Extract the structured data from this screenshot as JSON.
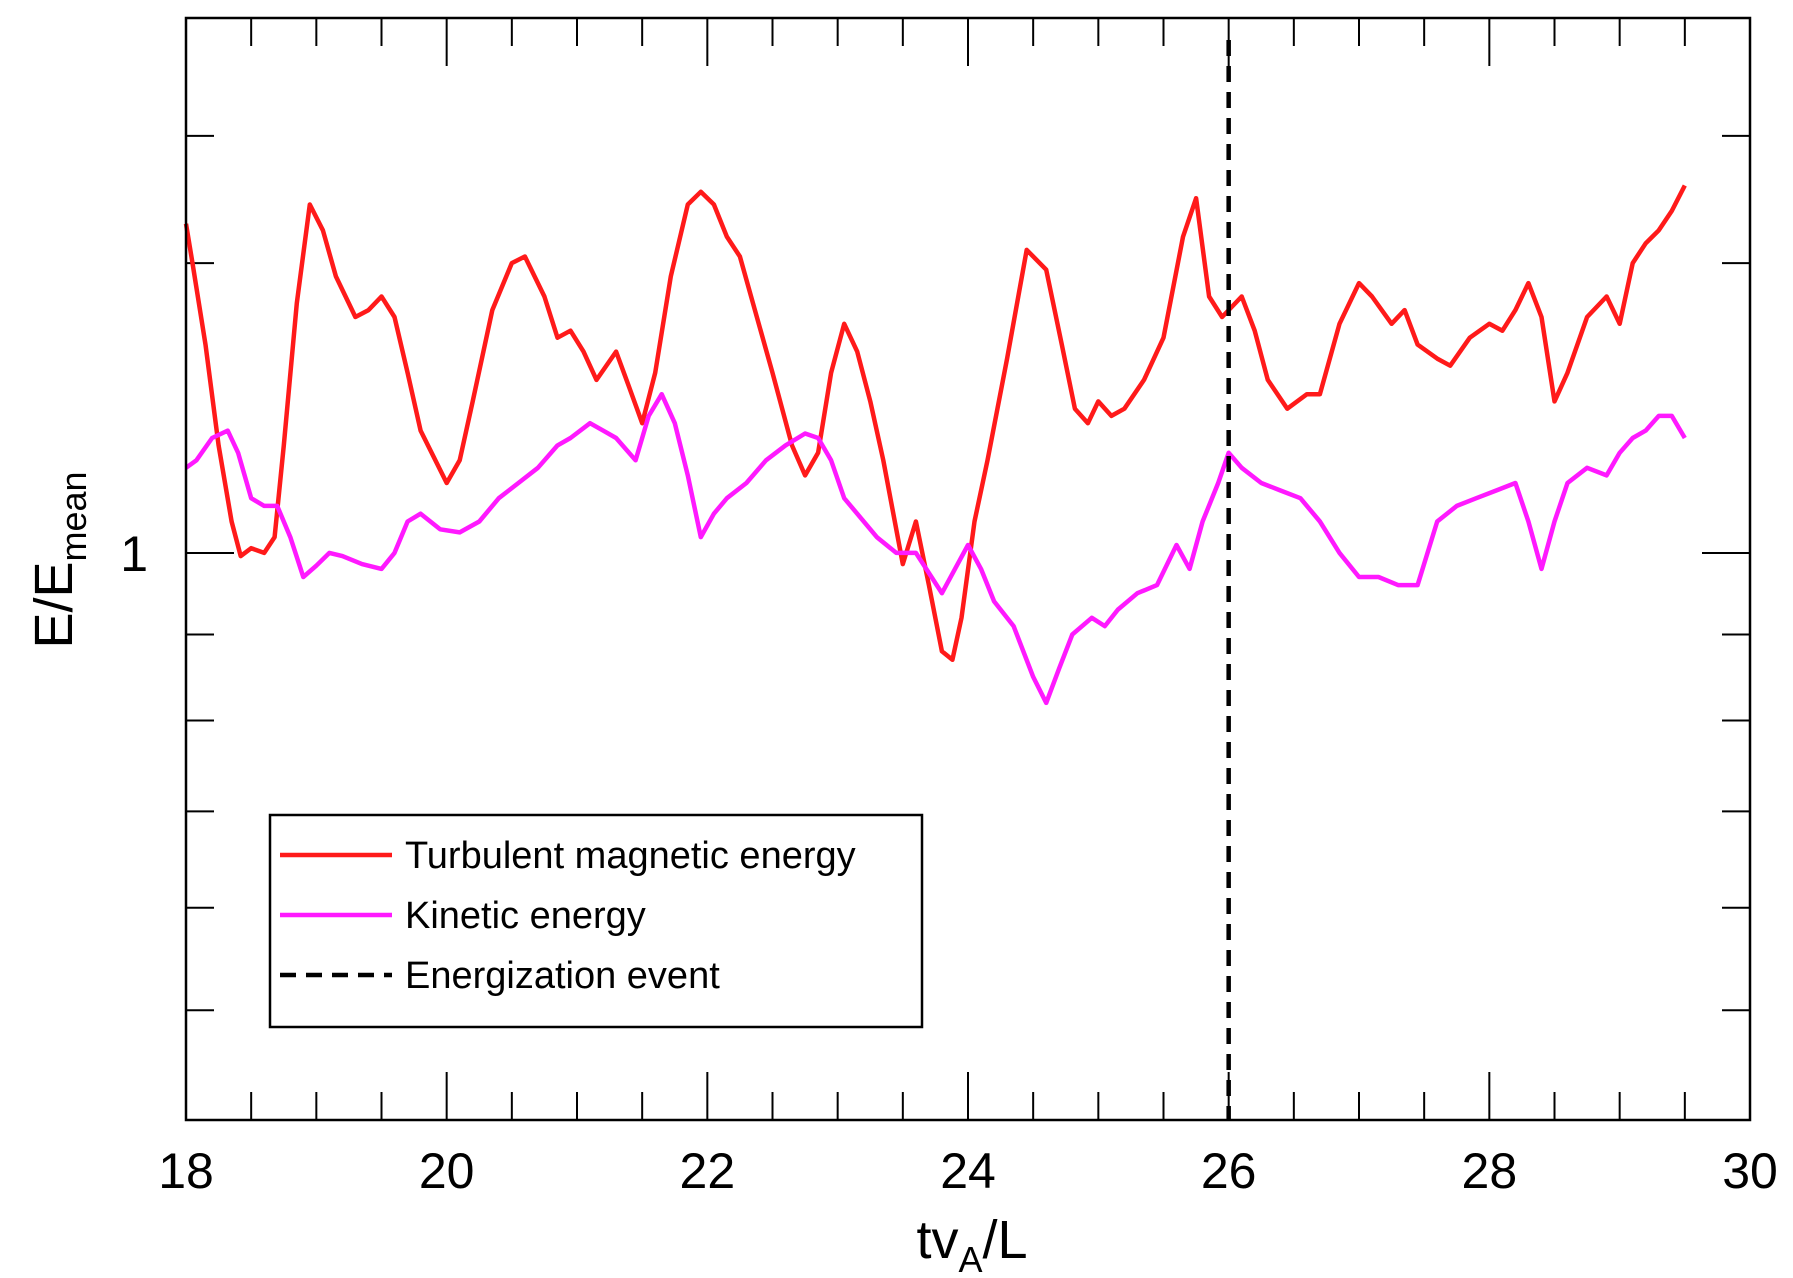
{
  "chart_data": {
    "type": "line",
    "title": "",
    "xlabel": {
      "main": "tv",
      "sub": "A",
      "tail": "/L"
    },
    "ylabel": {
      "main": "E/E",
      "sub": "mean"
    },
    "xlim": [
      18,
      30
    ],
    "ylog": true,
    "ylim": [
      0.7,
      1.4
    ],
    "x_ticks": [
      18,
      20,
      22,
      24,
      26,
      28,
      30
    ],
    "x_tick_labels": [
      "18",
      "20",
      "22",
      "24",
      "26",
      "28",
      "30"
    ],
    "y_ticks": [
      1
    ],
    "y_tick_labels": [
      "1"
    ],
    "legend_position": "bottom-left",
    "series": [
      {
        "name": "Turbulent magnetic energy",
        "color": "#ff1a1a",
        "style": "solid",
        "x": [
          18.0,
          18.05,
          18.15,
          18.25,
          18.35,
          18.42,
          18.5,
          18.6,
          18.68,
          18.75,
          18.85,
          18.95,
          19.05,
          19.15,
          19.3,
          19.4,
          19.5,
          19.6,
          19.7,
          19.8,
          20.0,
          20.1,
          20.2,
          20.35,
          20.5,
          20.6,
          20.75,
          20.85,
          20.95,
          21.05,
          21.15,
          21.3,
          21.4,
          21.5,
          21.6,
          21.72,
          21.85,
          21.95,
          22.05,
          22.15,
          22.25,
          22.35,
          22.5,
          22.65,
          22.75,
          22.85,
          22.95,
          23.05,
          23.15,
          23.25,
          23.35,
          23.5,
          23.6,
          23.7,
          23.8,
          23.88,
          23.95,
          24.05,
          24.15,
          24.3,
          24.45,
          24.6,
          24.72,
          24.82,
          24.92,
          25.0,
          25.1,
          25.2,
          25.35,
          25.5,
          25.65,
          25.75,
          25.85,
          25.95,
          26.1,
          26.2,
          26.3,
          26.45,
          26.6,
          26.7,
          26.85,
          27.0,
          27.1,
          27.25,
          27.35,
          27.45,
          27.6,
          27.7,
          27.85,
          28.0,
          28.1,
          28.2,
          28.3,
          28.4,
          28.5,
          28.6,
          28.75,
          28.9,
          29.0,
          29.1,
          29.2,
          29.3,
          29.4,
          29.5
        ],
        "values": [
          1.23,
          1.2,
          1.14,
          1.07,
          1.02,
          0.998,
          1.003,
          1.0,
          1.01,
          1.07,
          1.17,
          1.245,
          1.225,
          1.19,
          1.16,
          1.165,
          1.175,
          1.16,
          1.12,
          1.08,
          1.045,
          1.06,
          1.1,
          1.165,
          1.2,
          1.205,
          1.175,
          1.145,
          1.15,
          1.135,
          1.115,
          1.135,
          1.11,
          1.085,
          1.12,
          1.19,
          1.245,
          1.255,
          1.245,
          1.22,
          1.205,
          1.17,
          1.12,
          1.07,
          1.05,
          1.065,
          1.12,
          1.155,
          1.135,
          1.1,
          1.06,
          0.993,
          1.02,
          0.98,
          0.94,
          0.935,
          0.96,
          1.02,
          1.06,
          1.13,
          1.21,
          1.195,
          1.14,
          1.095,
          1.085,
          1.1,
          1.09,
          1.095,
          1.115,
          1.145,
          1.22,
          1.25,
          1.175,
          1.16,
          1.175,
          1.15,
          1.115,
          1.095,
          1.105,
          1.105,
          1.155,
          1.185,
          1.175,
          1.155,
          1.165,
          1.14,
          1.13,
          1.125,
          1.145,
          1.155,
          1.15,
          1.165,
          1.185,
          1.16,
          1.1,
          1.12,
          1.16,
          1.175,
          1.155,
          1.2,
          1.215,
          1.225,
          1.24,
          1.26
        ]
      },
      {
        "name": "Kinetic energy",
        "color": "#ff19ff",
        "style": "solid",
        "x": [
          18.0,
          18.08,
          18.2,
          18.32,
          18.4,
          18.5,
          18.6,
          18.7,
          18.8,
          18.9,
          19.0,
          19.1,
          19.2,
          19.35,
          19.5,
          19.6,
          19.7,
          19.8,
          19.95,
          20.1,
          20.25,
          20.4,
          20.55,
          20.7,
          20.85,
          20.95,
          21.1,
          21.2,
          21.3,
          21.45,
          21.55,
          21.65,
          21.75,
          21.85,
          21.95,
          22.05,
          22.15,
          22.3,
          22.45,
          22.6,
          22.75,
          22.85,
          22.95,
          23.05,
          23.15,
          23.3,
          23.45,
          23.6,
          23.72,
          23.8,
          23.9,
          24.0,
          24.1,
          24.2,
          24.35,
          24.5,
          24.6,
          24.7,
          24.8,
          24.95,
          25.05,
          25.15,
          25.3,
          25.45,
          25.6,
          25.7,
          25.8,
          25.92,
          26.0,
          26.1,
          26.25,
          26.4,
          26.55,
          26.7,
          26.85,
          27.0,
          27.15,
          27.3,
          27.45,
          27.6,
          27.75,
          27.9,
          28.05,
          28.2,
          28.3,
          28.4,
          28.5,
          28.6,
          28.75,
          28.9,
          29.0,
          29.1,
          29.2,
          29.3,
          29.4,
          29.5
        ],
        "values": [
          1.055,
          1.06,
          1.075,
          1.08,
          1.065,
          1.035,
          1.03,
          1.03,
          1.01,
          0.985,
          0.992,
          1.0,
          0.998,
          0.993,
          0.99,
          1.0,
          1.02,
          1.025,
          1.015,
          1.013,
          1.02,
          1.035,
          1.045,
          1.055,
          1.07,
          1.075,
          1.085,
          1.08,
          1.075,
          1.06,
          1.09,
          1.105,
          1.085,
          1.05,
          1.01,
          1.025,
          1.035,
          1.045,
          1.06,
          1.07,
          1.078,
          1.075,
          1.06,
          1.035,
          1.025,
          1.01,
          1.0,
          1.0,
          0.985,
          0.975,
          0.99,
          1.005,
          0.99,
          0.97,
          0.955,
          0.925,
          0.91,
          0.93,
          0.95,
          0.96,
          0.955,
          0.965,
          0.975,
          0.98,
          1.005,
          0.99,
          1.02,
          1.045,
          1.065,
          1.055,
          1.045,
          1.04,
          1.035,
          1.02,
          1.0,
          0.985,
          0.985,
          0.98,
          0.98,
          1.02,
          1.03,
          1.035,
          1.04,
          1.045,
          1.02,
          0.99,
          1.02,
          1.045,
          1.055,
          1.05,
          1.065,
          1.075,
          1.08,
          1.09,
          1.09,
          1.075
        ]
      },
      {
        "name": "Energization event",
        "color": "#000000",
        "style": "dashed",
        "x_position": 26
      }
    ]
  }
}
